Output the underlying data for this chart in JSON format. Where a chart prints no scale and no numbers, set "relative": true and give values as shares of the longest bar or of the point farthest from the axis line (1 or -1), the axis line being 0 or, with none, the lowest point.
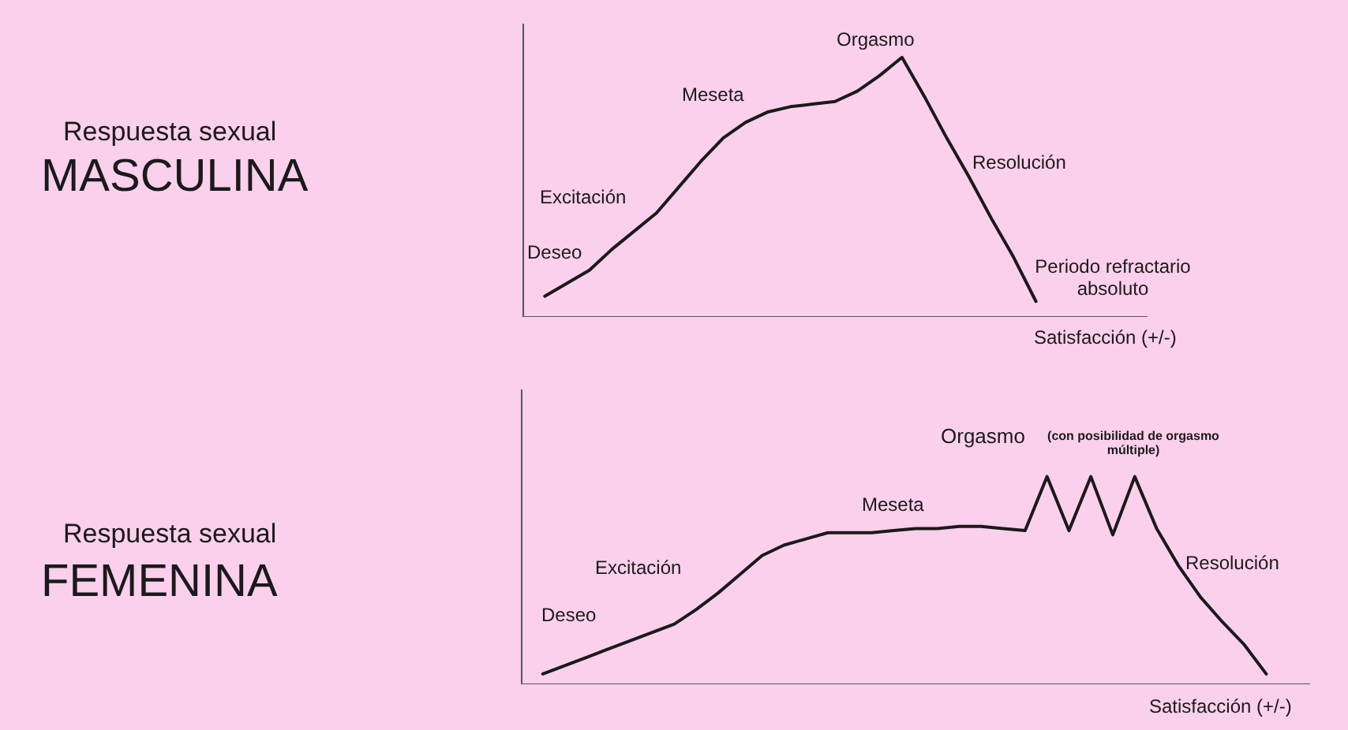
{
  "chart_data": [
    {
      "type": "other",
      "title": "Respuesta sexual",
      "subtitle": "MASCULINA"
    },
    {
      "type": "line",
      "xlabel": "Satisfacción (+/-)",
      "annotations": [
        "Deseo",
        "Excitación",
        "Meseta",
        "Orgasmo",
        "Resolución",
        "Periodo refractario absoluto"
      ],
      "relative": true,
      "tick_labels": false,
      "marker": "none",
      "categories": [
        null,
        null,
        null,
        null,
        null,
        null,
        null,
        null,
        null,
        null,
        null,
        null,
        null,
        null,
        null,
        null,
        null,
        null,
        null,
        null,
        null,
        null,
        null,
        null,
        null,
        null,
        null,
        null,
        null
      ],
      "series": [
        {
          "color": "#1a1a1a",
          "values": [
            null,
            0.08,
            0.13,
            0.18,
            0.26,
            0.33,
            0.4,
            0.5,
            0.6,
            0.69,
            0.75,
            0.79,
            0.81,
            0.82,
            0.83,
            0.87,
            0.93,
            1,
            0.85,
            0.69,
            0.54,
            0.38,
            0.23,
            0.06,
            null,
            null,
            null,
            null,
            null
          ]
        }
      ]
    },
    {
      "type": "other",
      "title": "Respuesta sexual",
      "subtitle": "FEMENINA"
    },
    {
      "type": "line",
      "xlabel": "Satisfacción (+/-)",
      "annotations": [
        "Deseo",
        "Excitación",
        "Meseta",
        "Orgasmo",
        "(con posibilidad de orgasmo múltiple)",
        "Resolución"
      ],
      "relative": true,
      "tick_labels": false,
      "marker": "none",
      "categories": [
        null,
        null,
        null,
        null,
        null,
        null,
        null,
        null,
        null,
        null,
        null,
        null,
        null,
        null,
        null,
        null,
        null,
        null,
        null,
        null,
        null,
        null,
        null,
        null,
        null,
        null,
        null,
        null,
        null,
        null,
        null,
        null,
        null,
        null,
        null,
        null,
        null
      ],
      "series": [
        {
          "color": "#1a1a1a",
          "values": [
            null,
            0.05,
            0.09,
            0.13,
            0.17,
            0.21,
            0.25,
            0.29,
            0.36,
            0.44,
            0.53,
            0.62,
            0.67,
            0.7,
            0.73,
            0.73,
            0.73,
            0.74,
            0.75,
            0.75,
            0.76,
            0.76,
            0.75,
            0.74,
            1,
            0.74,
            1,
            0.72,
            1,
            0.75,
            0.57,
            0.42,
            0.3,
            0.19,
            0.05,
            null,
            null
          ]
        }
      ]
    }
  ]
}
